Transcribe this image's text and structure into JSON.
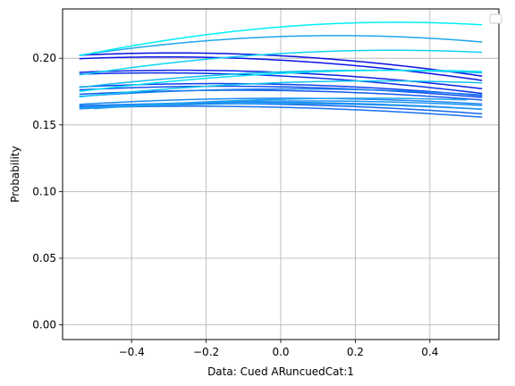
{
  "chart_data": {
    "type": "line",
    "title": "",
    "xlabel": "Data: Cued ARuncuedCat:1",
    "ylabel": "Probability",
    "xlim": [
      -0.585,
      0.585
    ],
    "ylim": [
      -0.011,
      0.237
    ],
    "xticks": [
      -0.4,
      -0.2,
      0.0,
      0.2,
      0.4
    ],
    "xtick_labels": [
      "−0.4",
      "−0.2",
      "0.0",
      "0.2",
      "0.4"
    ],
    "yticks": [
      0.0,
      0.05,
      0.1,
      0.15,
      0.2
    ],
    "ytick_labels": [
      "0.00",
      "0.05",
      "0.10",
      "0.15",
      "0.20"
    ],
    "grid": true,
    "legend": {
      "placement": "top-right",
      "entries": []
    },
    "series": [
      {
        "color": "#0a10e0",
        "x_range": [
          -0.54,
          0.54
        ],
        "peak_x": -0.285,
        "peak_y": 0.204
      },
      {
        "color": "#0a14e8",
        "x_range": [
          -0.54,
          0.54
        ],
        "peak_x": -0.31,
        "peak_y": 0.201
      },
      {
        "color": "#0b22e6",
        "x_range": [
          -0.54,
          0.54
        ],
        "peak_x": -0.27,
        "peak_y": 0.191
      },
      {
        "color": "#0c2ee8",
        "x_range": [
          -0.54,
          0.54
        ],
        "peak_x": -0.33,
        "peak_y": 0.189
      },
      {
        "color": "#0e42ee",
        "x_range": [
          -0.54,
          0.54
        ],
        "peak_x": -0.17,
        "peak_y": 0.181
      },
      {
        "color": "#1050ee",
        "x_range": [
          -0.54,
          0.54
        ],
        "peak_x": -0.15,
        "peak_y": 0.179
      },
      {
        "color": "#125aef",
        "x_range": [
          -0.54,
          0.54
        ],
        "peak_x": -0.12,
        "peak_y": 0.176
      },
      {
        "color": "#1466f0",
        "x_range": [
          -0.54,
          0.54
        ],
        "peak_x": -0.2,
        "peak_y": 0.166
      },
      {
        "color": "#1770f0",
        "x_range": [
          -0.54,
          0.54
        ],
        "peak_x": -0.24,
        "peak_y": 0.164
      },
      {
        "color": "#1a80f0",
        "x_range": [
          -0.54,
          0.54
        ],
        "peak_x": 0.03,
        "peak_y": 0.177
      },
      {
        "color": "#1c8af0",
        "x_range": [
          -0.54,
          0.54
        ],
        "peak_x": 0.01,
        "peak_y": 0.17
      },
      {
        "color": "#1c86f0",
        "x_range": [
          -0.54,
          0.54
        ],
        "peak_x": -0.06,
        "peak_y": 0.167
      },
      {
        "color": "#1e94f0",
        "x_range": [
          -0.54,
          0.54
        ],
        "peak_x": 0.06,
        "peak_y": 0.168
      },
      {
        "color": "#2098f0",
        "x_range": [
          -0.54,
          0.54
        ],
        "peak_x": -0.01,
        "peak_y": 0.166
      },
      {
        "color": "#20a0ee",
        "x_range": [
          -0.5,
          0.5
        ],
        "peak_x": 0.22,
        "peak_y": 0.17
      },
      {
        "color": "#1ea6ec",
        "x_range": [
          -0.54,
          0.54
        ],
        "peak_x": 0.15,
        "peak_y": 0.217
      },
      {
        "color": "#12bcee",
        "x_range": [
          -0.54,
          0.54
        ],
        "peak_x": 0.24,
        "peak_y": 0.191
      },
      {
        "color": "#10c6ee",
        "x_range": [
          -0.54,
          0.54
        ],
        "peak_x": 0.26,
        "peak_y": 0.183
      },
      {
        "color": "#0cd6f0",
        "x_range": [
          -0.54,
          0.54
        ],
        "peak_x": 0.3,
        "peak_y": 0.206
      },
      {
        "color": "#06e2f2",
        "x_range": [
          -0.54,
          0.54
        ],
        "peak_x": 0.33,
        "peak_y": 0.191
      },
      {
        "color": "#00eef8",
        "x_range": [
          -0.54,
          0.54
        ],
        "peak_x": 0.31,
        "peak_y": 0.227
      }
    ]
  }
}
